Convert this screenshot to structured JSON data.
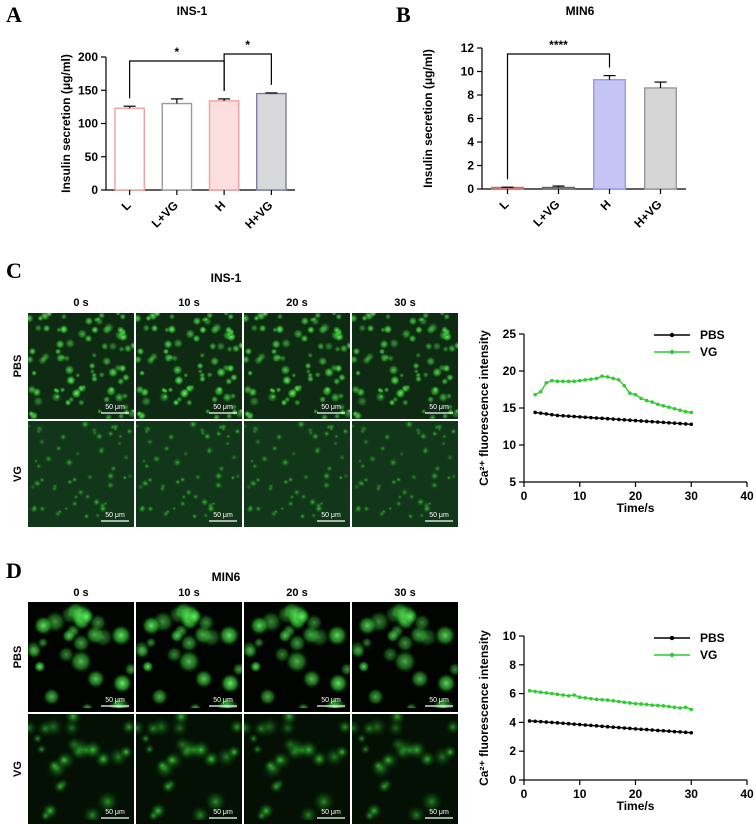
{
  "panels": {
    "A": {
      "letter": "A"
    },
    "B": {
      "letter": "B"
    },
    "C": {
      "letter": "C",
      "title": "INS-1"
    },
    "D": {
      "letter": "D",
      "title": "MIN6"
    }
  },
  "micrographs": {
    "times": [
      "0 s",
      "10 s",
      "20 s",
      "30 s"
    ],
    "rows": [
      "PBS",
      "VG"
    ],
    "scale_bar": "50 μm"
  },
  "chart_data": [
    {
      "id": "A",
      "type": "bar",
      "title": "INS-1",
      "categories": [
        "L",
        "L+VG",
        "H",
        "H+VG"
      ],
      "values": [
        123,
        130,
        134,
        145
      ],
      "errors": [
        3,
        7,
        3,
        1
      ],
      "colors": [
        "#f2a0a0",
        "#9a9a9a",
        "#f2a0a0",
        "#7d7da8"
      ],
      "fills": [
        "#ffffff",
        "#ffffff",
        "#fbdede",
        "#d9d9d9"
      ],
      "ylabel": "Insulin secretion (μg/ml)",
      "ylim": [
        0,
        200
      ],
      "yticks": [
        0,
        50,
        100,
        150,
        200
      ],
      "significance": [
        {
          "from": 0,
          "to": 2,
          "label": "*"
        },
        {
          "from": 2,
          "to": 3,
          "label": "*"
        }
      ]
    },
    {
      "id": "B",
      "type": "bar",
      "title": "MIN6",
      "categories": [
        "L",
        "L+VG",
        "H",
        "H+VG"
      ],
      "values": [
        0.05,
        0.1,
        9.3,
        8.6
      ],
      "errors": [
        0.1,
        0.15,
        0.35,
        0.5
      ],
      "colors": [
        "#cc6666",
        "#666666",
        "#9a9ae6",
        "#999999"
      ],
      "fills": [
        "#ffffff",
        "#ffffff",
        "#c4c4f5",
        "#d6d6d6"
      ],
      "ylabel": "Insulin secretion (μg/ml)",
      "ylim": [
        0,
        12
      ],
      "yticks": [
        0,
        2,
        4,
        6,
        8,
        10,
        12
      ],
      "significance": [
        {
          "from": 0,
          "to": 2,
          "label": "****"
        }
      ]
    },
    {
      "id": "C",
      "type": "line",
      "xlabel": "Time/s",
      "ylabel": "Ca²⁺ fluorescence intensity",
      "xlim": [
        0,
        40
      ],
      "ylim": [
        5,
        25
      ],
      "xticks": [
        0,
        10,
        20,
        30,
        40
      ],
      "yticks": [
        5,
        10,
        15,
        20,
        25
      ],
      "x": [
        2,
        3,
        4,
        5,
        6,
        7,
        8,
        9,
        10,
        11,
        12,
        13,
        14,
        15,
        16,
        17,
        18,
        19,
        20,
        21,
        22,
        23,
        24,
        25,
        26,
        27,
        28,
        29,
        30
      ],
      "series": [
        {
          "name": "PBS",
          "color": "#000000",
          "values": [
            14.4,
            14.3,
            14.2,
            14.1,
            14.0,
            13.95,
            13.9,
            13.85,
            13.8,
            13.75,
            13.7,
            13.65,
            13.6,
            13.55,
            13.5,
            13.45,
            13.4,
            13.35,
            13.3,
            13.25,
            13.2,
            13.15,
            13.1,
            13.05,
            13.0,
            12.95,
            12.9,
            12.85,
            12.8
          ]
        },
        {
          "name": "VG",
          "color": "#2ecc2e",
          "values": [
            16.8,
            17.2,
            18.4,
            18.7,
            18.6,
            18.6,
            18.6,
            18.6,
            18.7,
            18.8,
            18.9,
            19.0,
            19.3,
            19.2,
            19.0,
            18.8,
            18.0,
            17.0,
            16.8,
            16.3,
            16.0,
            15.8,
            15.5,
            15.3,
            15.1,
            14.9,
            14.7,
            14.5,
            14.4
          ]
        }
      ]
    },
    {
      "id": "D",
      "type": "line",
      "xlabel": "Time/s",
      "ylabel": "Ca²⁺ fluorescence intensity",
      "xlim": [
        0,
        40
      ],
      "ylim": [
        0,
        10
      ],
      "xticks": [
        0,
        10,
        20,
        30,
        40
      ],
      "yticks": [
        0,
        2,
        4,
        6,
        8,
        10
      ],
      "x": [
        1,
        2,
        3,
        4,
        5,
        6,
        7,
        8,
        9,
        10,
        11,
        12,
        13,
        14,
        15,
        16,
        17,
        18,
        19,
        20,
        21,
        22,
        23,
        24,
        25,
        26,
        27,
        28,
        29,
        30
      ],
      "series": [
        {
          "name": "PBS",
          "color": "#000000",
          "values": [
            4.1,
            4.08,
            4.05,
            4.02,
            4.0,
            3.97,
            3.94,
            3.91,
            3.88,
            3.85,
            3.82,
            3.79,
            3.76,
            3.73,
            3.7,
            3.67,
            3.64,
            3.61,
            3.58,
            3.55,
            3.52,
            3.5,
            3.47,
            3.44,
            3.42,
            3.39,
            3.36,
            3.34,
            3.31,
            3.28
          ]
        },
        {
          "name": "VG",
          "color": "#2ecc2e",
          "values": [
            6.2,
            6.15,
            6.1,
            6.05,
            6.0,
            5.95,
            5.9,
            5.85,
            5.9,
            5.75,
            5.7,
            5.65,
            5.6,
            5.58,
            5.55,
            5.5,
            5.45,
            5.4,
            5.35,
            5.3,
            5.28,
            5.25,
            5.2,
            5.18,
            5.15,
            5.1,
            5.05,
            5.0,
            5.05,
            4.9
          ]
        }
      ]
    }
  ]
}
